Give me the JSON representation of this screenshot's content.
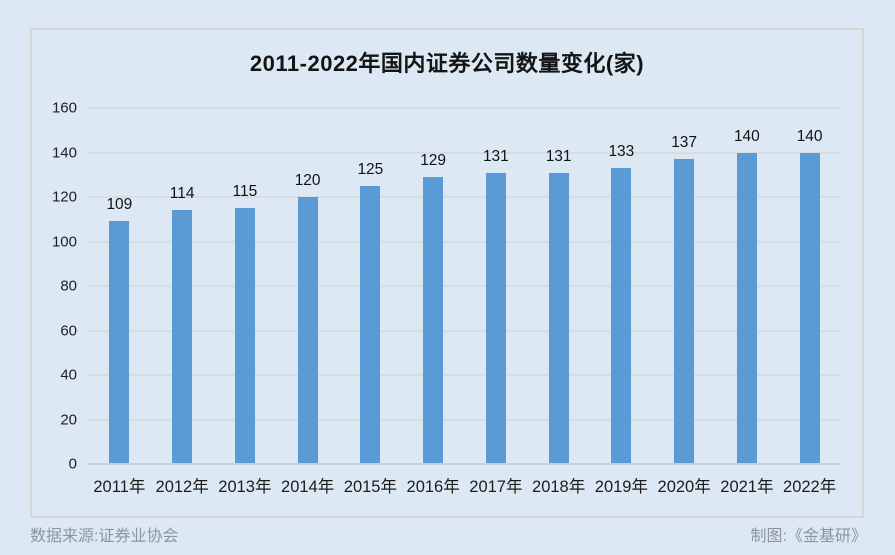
{
  "chart_data": {
    "type": "bar",
    "title": "2011-2022年国内证券公司数量变化(家)",
    "categories": [
      "2011年",
      "2012年",
      "2013年",
      "2014年",
      "2015年",
      "2016年",
      "2017年",
      "2018年",
      "2019年",
      "2020年",
      "2021年",
      "2022年"
    ],
    "values": [
      109,
      114,
      115,
      120,
      125,
      129,
      131,
      131,
      133,
      137,
      140,
      140
    ],
    "xlabel": "",
    "ylabel": "",
    "ylim": [
      0,
      160
    ],
    "yticks": [
      0,
      20,
      40,
      60,
      80,
      100,
      120,
      140,
      160
    ],
    "grid": true,
    "legend_position": "none",
    "value_labels": true,
    "bar_color": "#5B9BD5"
  },
  "footer": {
    "source": "数据来源:证券业协会",
    "credit": "制图:《金基研》"
  },
  "colors": {
    "background": "#dce9f5",
    "panel_border": "#d6d6d6",
    "bar": "#5B9BD5",
    "gridline": "#dadcde",
    "axis_line": "#ccd0d3",
    "text": "#141414",
    "footer_text": "#8d969e"
  }
}
